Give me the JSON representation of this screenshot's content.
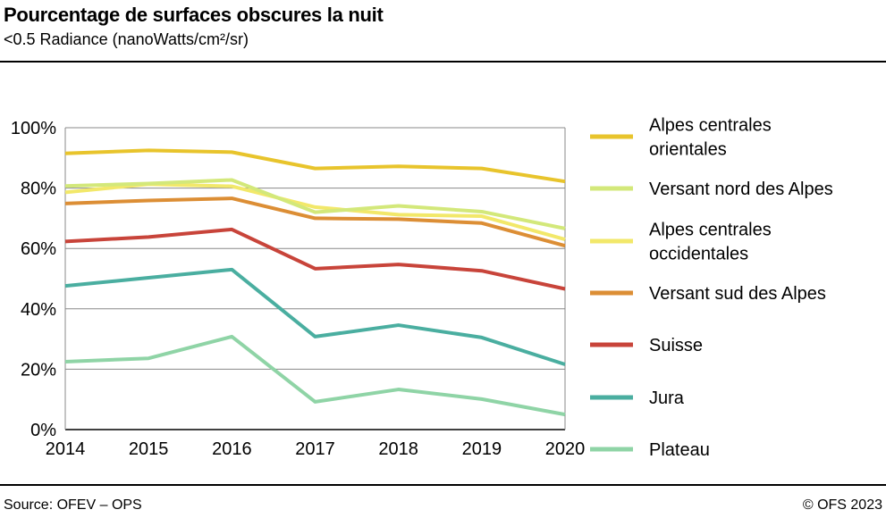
{
  "header": {
    "title": "Pourcentage de surfaces obscures la nuit",
    "subtitle": "<0.5 Radiance (nanoWatts/cm²/sr)"
  },
  "footer": {
    "source": "Source: OFEV – OPS",
    "copyright": "© OFS 2023"
  },
  "chart_data": {
    "type": "line",
    "title": "Pourcentage de surfaces obscures la nuit",
    "subtitle": "<0.5 Radiance (nanoWatts/cm²/sr)",
    "x": [
      2014,
      2015,
      2016,
      2017,
      2018,
      2019,
      2020
    ],
    "x_tick_labels": [
      "2014",
      "2015",
      "2016",
      "2017",
      "2018",
      "2019",
      "2020"
    ],
    "ylim": [
      0,
      100
    ],
    "y_ticks": [
      0,
      20,
      40,
      60,
      80,
      100
    ],
    "y_tick_labels": [
      "0%",
      "20%",
      "40%",
      "60%",
      "80%",
      "100%"
    ],
    "grid": "horizontal",
    "legend_placement": "right",
    "series": [
      {
        "name": "Alpes centrales orientales",
        "legend_lines": [
          "Alpes centrales",
          "orientales"
        ],
        "color": "#e8c42c",
        "values": [
          91.5,
          92.5,
          91.9,
          86.5,
          87.2,
          86.5,
          82.2
        ]
      },
      {
        "name": "Versant nord des Alpes",
        "legend_lines": [
          "Versant nord des Alpes"
        ],
        "color": "#d3e87a",
        "values": [
          80.7,
          81.5,
          82.7,
          72.0,
          74.1,
          72.2,
          66.6
        ]
      },
      {
        "name": "Alpes centrales occidentales",
        "legend_lines": [
          "Alpes centrales",
          "occidentales"
        ],
        "color": "#f2e86a",
        "values": [
          78.6,
          81.3,
          80.6,
          73.7,
          71.2,
          70.7,
          63.0
        ]
      },
      {
        "name": "Versant sud des Alpes",
        "legend_lines": [
          "Versant sud des Alpes"
        ],
        "color": "#dc8e35",
        "values": [
          74.9,
          75.9,
          76.6,
          70.0,
          69.7,
          68.4,
          60.9
        ]
      },
      {
        "name": "Suisse",
        "legend_lines": [
          "Suisse"
        ],
        "color": "#c8443a",
        "values": [
          62.3,
          63.8,
          66.3,
          53.3,
          54.7,
          52.6,
          46.6
        ]
      },
      {
        "name": "Jura",
        "legend_lines": [
          "Jura"
        ],
        "color": "#4aaea0",
        "values": [
          47.6,
          50.3,
          53.0,
          30.8,
          34.6,
          30.5,
          21.6
        ]
      },
      {
        "name": "Plateau",
        "legend_lines": [
          "Plateau"
        ],
        "color": "#8fd4a6",
        "values": [
          22.5,
          23.6,
          30.8,
          9.2,
          13.3,
          10.1,
          5.0
        ]
      }
    ]
  }
}
